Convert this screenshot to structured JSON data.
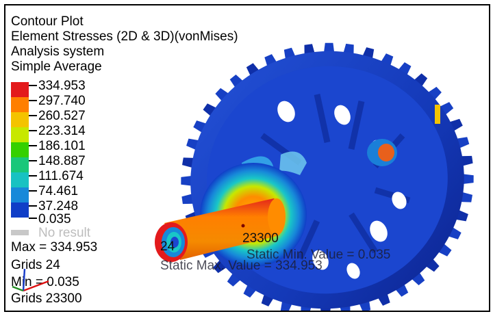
{
  "header": {
    "title": "Contour Plot",
    "result_type": "Element Stresses (2D & 3D)(vonMises)",
    "coordinate_system": "Analysis system",
    "averaging": "Simple Average"
  },
  "legend": {
    "values": [
      "334.953",
      "297.740",
      "260.527",
      "223.314",
      "186.101",
      "148.887",
      "111.674",
      "74.461",
      "37.248",
      "0.035"
    ],
    "colors": [
      "#e31a1c",
      "#ff7f00",
      "#f4c300",
      "#c7e800",
      "#35d000",
      "#19c77a",
      "#18c2c2",
      "#1789d9",
      "#103ec7",
      "#0b1f92"
    ],
    "no_result_label": "No result"
  },
  "stats": {
    "max": "Max = 334.953",
    "max_grids": "Grids 24",
    "min": "Min = 0.035",
    "min_grids": "Grids 23300"
  },
  "annotations": {
    "max_node": "24",
    "min_node": "23300",
    "static_min": "Static Min. Value = 0.035",
    "static_max": "Static Max. Value = 334.953"
  },
  "axes": {
    "x_color": "#d11",
    "y_color": "#228b22",
    "z_color": "#1a3ec9"
  }
}
